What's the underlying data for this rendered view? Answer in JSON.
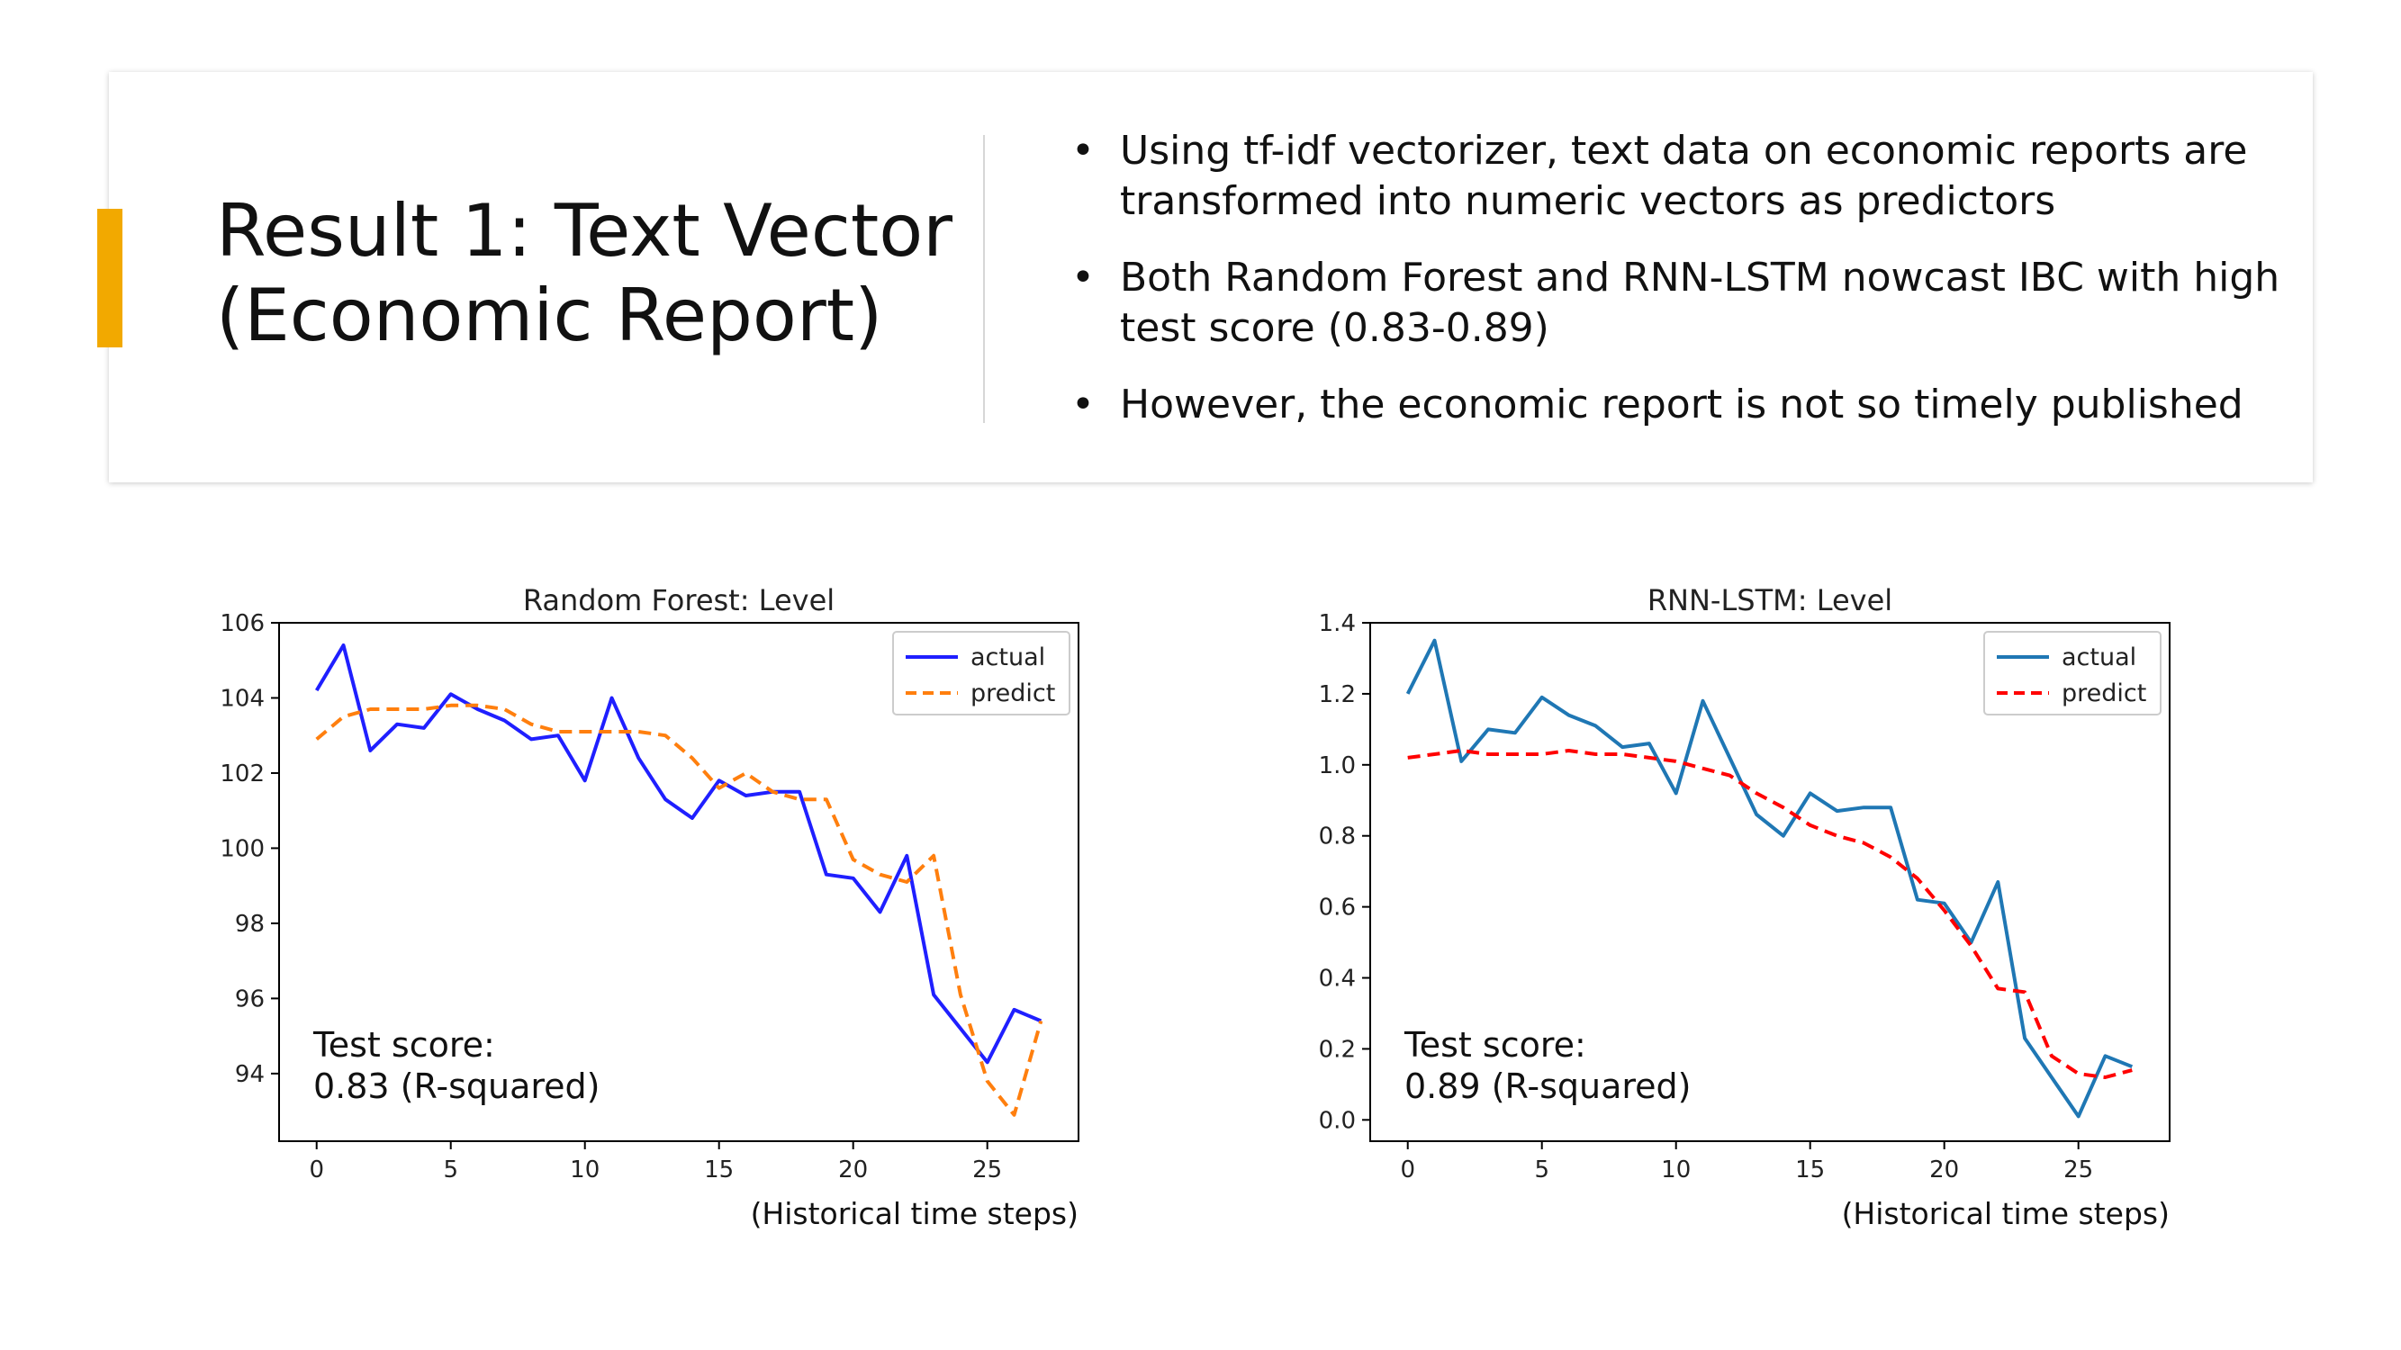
{
  "slide": {
    "title_line1": "Result 1: Text Vector",
    "title_line2": "(Economic Report)",
    "bullets": [
      "Using tf-idf vectorizer, text data on economic reports are transformed into numeric vectors as predictors",
      "Both Random Forest and RNN-LSTM nowcast IBC with high test score (0.83-0.89)",
      "However, the economic report is not so timely published"
    ],
    "bullet_symbol": "•",
    "accent_color": "#f2a900"
  },
  "chart_data": [
    {
      "type": "line",
      "title": "Random Forest: Level",
      "xlabel": "(Historical time steps)",
      "ylabel": "",
      "xlim": [
        -1.4,
        28.4
      ],
      "ylim": [
        92.2,
        106
      ],
      "xticks": [
        0,
        5,
        10,
        15,
        20,
        25
      ],
      "yticks": [
        94,
        96,
        98,
        100,
        102,
        104,
        106
      ],
      "x": [
        0,
        1,
        2,
        3,
        4,
        5,
        6,
        7,
        8,
        9,
        10,
        11,
        12,
        13,
        14,
        15,
        16,
        17,
        18,
        19,
        20,
        21,
        22,
        23,
        24,
        25,
        26,
        27
      ],
      "series": [
        {
          "name": "actual",
          "color": "#1f1fff",
          "dash": false,
          "values": [
            104.2,
            105.4,
            102.6,
            103.3,
            103.2,
            104.1,
            103.7,
            103.4,
            102.9,
            103.0,
            101.8,
            104.0,
            102.4,
            101.3,
            100.8,
            101.8,
            101.4,
            101.5,
            101.5,
            99.3,
            99.2,
            98.3,
            99.8,
            96.1,
            95.2,
            94.3,
            95.7,
            95.4
          ]
        },
        {
          "name": "predict",
          "color": "#ff7f0e",
          "dash": true,
          "values": [
            102.9,
            103.5,
            103.7,
            103.7,
            103.7,
            103.8,
            103.8,
            103.7,
            103.3,
            103.1,
            103.1,
            103.1,
            103.1,
            103.0,
            102.4,
            101.6,
            102.0,
            101.5,
            101.3,
            101.3,
            99.7,
            99.3,
            99.1,
            99.8,
            96.1,
            93.8,
            92.9,
            95.4
          ]
        }
      ],
      "legend": "top-right",
      "annotation": [
        "Test score:",
        "0.83 (R-squared)"
      ]
    },
    {
      "type": "line",
      "title": "RNN-LSTM: Level",
      "xlabel": "(Historical time steps)",
      "ylabel": "",
      "xlim": [
        -1.4,
        28.4
      ],
      "ylim": [
        -0.06,
        1.4
      ],
      "xticks": [
        0,
        5,
        10,
        15,
        20,
        25
      ],
      "yticks": [
        0.0,
        0.2,
        0.4,
        0.6,
        0.8,
        1.0,
        1.2,
        1.4
      ],
      "x": [
        0,
        1,
        2,
        3,
        4,
        5,
        6,
        7,
        8,
        9,
        10,
        11,
        12,
        13,
        14,
        15,
        16,
        17,
        18,
        19,
        20,
        21,
        22,
        23,
        24,
        25,
        26,
        27
      ],
      "series": [
        {
          "name": "actual",
          "color": "#1f77b4",
          "dash": false,
          "values": [
            1.2,
            1.35,
            1.01,
            1.1,
            1.09,
            1.19,
            1.14,
            1.11,
            1.05,
            1.06,
            0.92,
            1.18,
            1.02,
            0.86,
            0.8,
            0.92,
            0.87,
            0.88,
            0.88,
            0.62,
            0.61,
            0.5,
            0.67,
            0.23,
            0.12,
            0.01,
            0.18,
            0.15
          ]
        },
        {
          "name": "predict",
          "color": "#ff0000",
          "dash": true,
          "values": [
            1.02,
            1.03,
            1.04,
            1.03,
            1.03,
            1.03,
            1.04,
            1.03,
            1.03,
            1.02,
            1.01,
            0.99,
            0.97,
            0.92,
            0.88,
            0.83,
            0.8,
            0.78,
            0.74,
            0.68,
            0.59,
            0.49,
            0.37,
            0.36,
            0.18,
            0.13,
            0.12,
            0.14
          ]
        }
      ],
      "legend": "top-right",
      "annotation": [
        "Test score:",
        "0.89 (R-squared)"
      ]
    }
  ]
}
